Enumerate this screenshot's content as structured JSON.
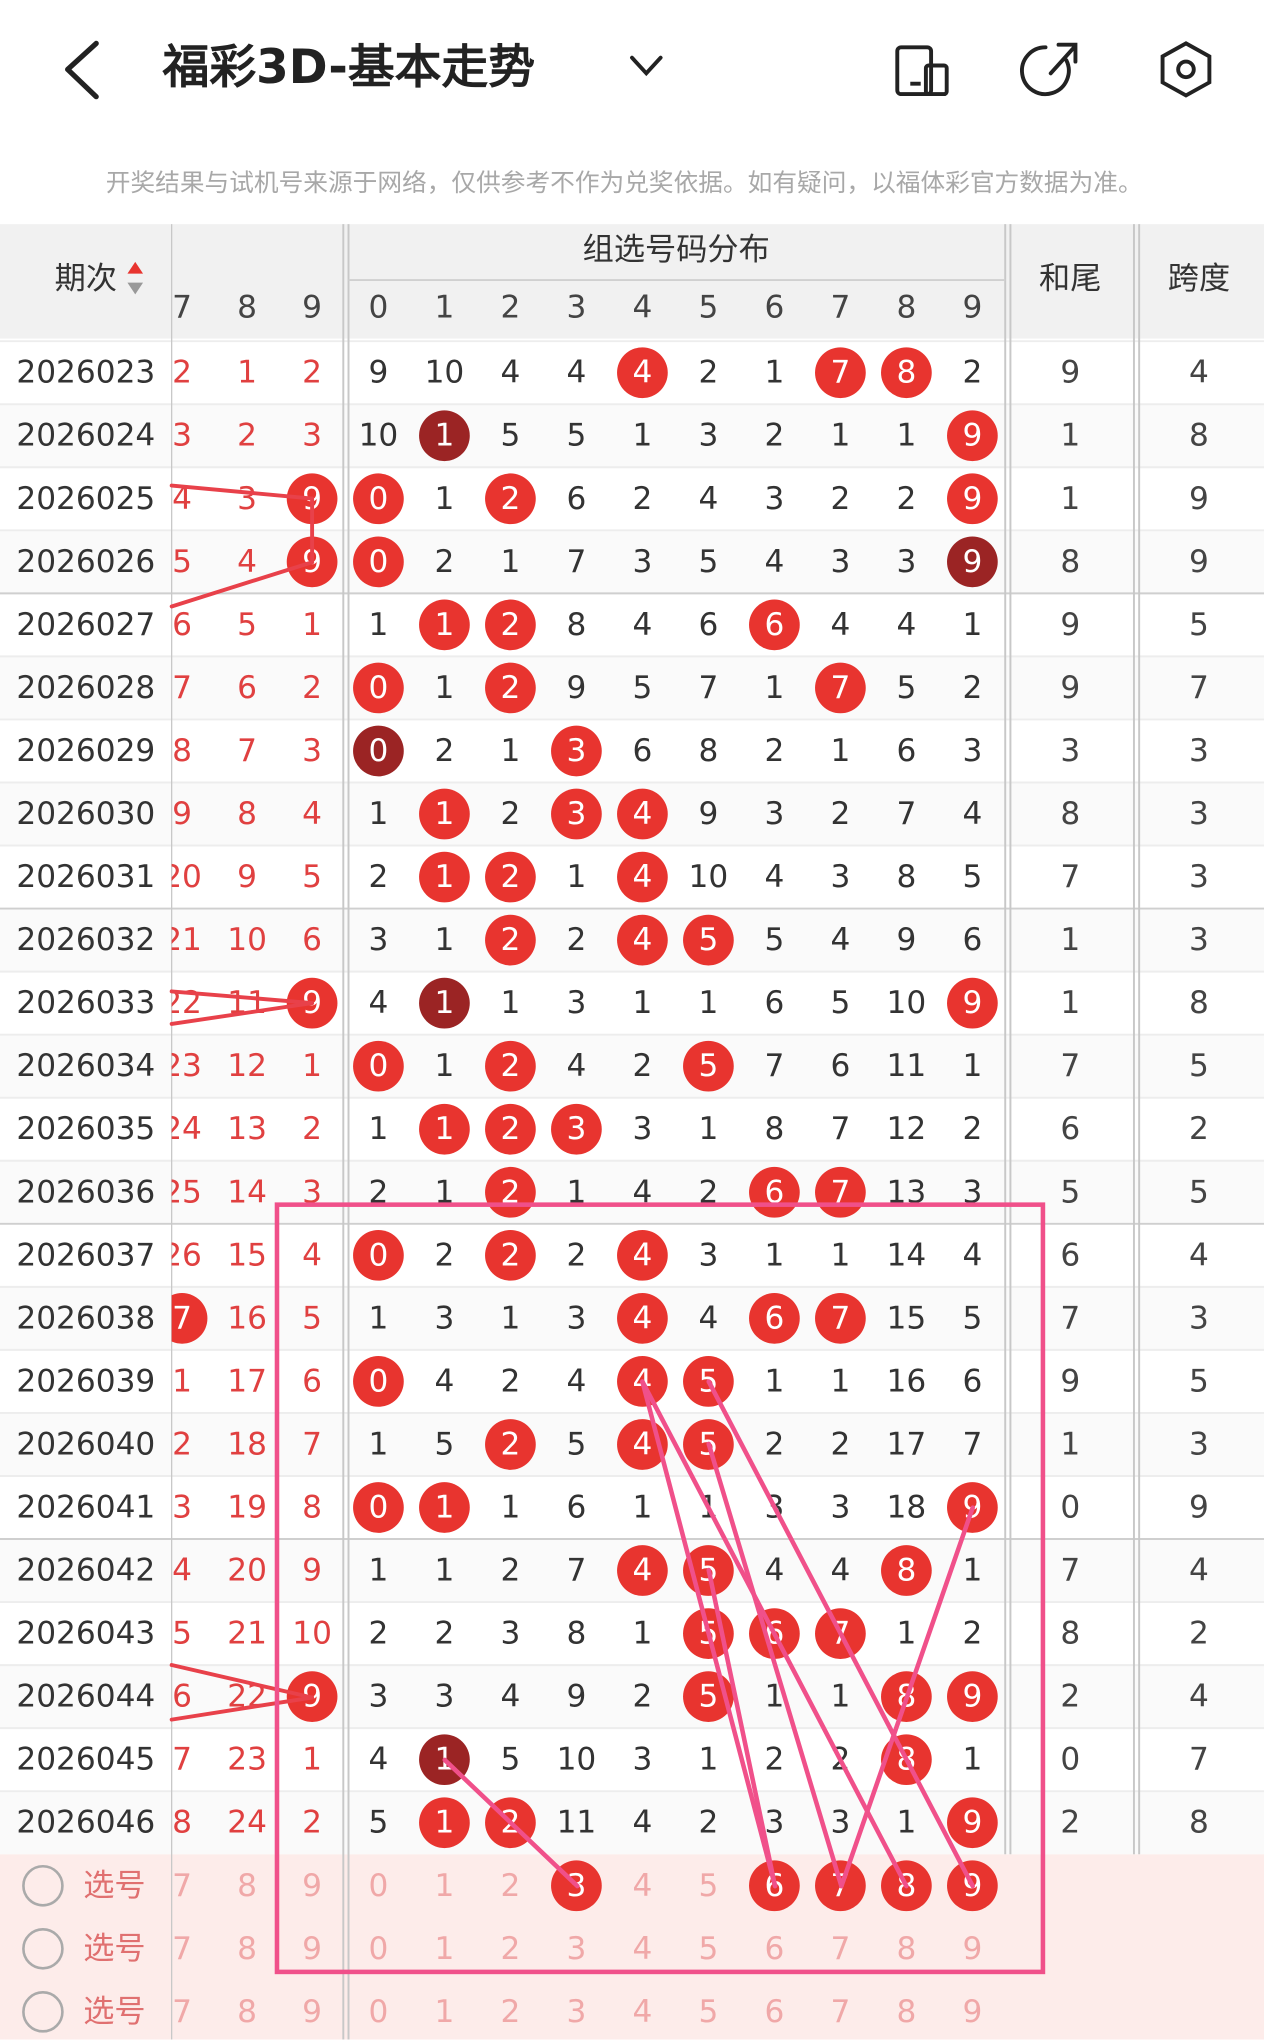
{
  "header": {
    "title": "福彩3D-基本走势",
    "notice": "开奖结果与试机号来源于网络，仅供参考不作为兑奖依据。如有疑问，以福体彩官方数据为准。"
  },
  "table": {
    "period_header": "期次",
    "group_header": "组选号码分布",
    "sum_tail_header": "和尾",
    "span_header": "跨度",
    "left_columns": [
      7,
      8,
      9
    ],
    "digit_columns": [
      0,
      1,
      2,
      3,
      4,
      5,
      6,
      7,
      8,
      9
    ],
    "rows": [
      {
        "period": "2026023",
        "left": [
          2,
          1,
          2
        ],
        "dist": [
          9,
          10,
          4,
          4,
          4,
          2,
          1,
          7,
          8,
          2
        ],
        "hit": [
          4,
          7,
          8
        ],
        "sum_tail": 9,
        "span": 4
      },
      {
        "period": "2026024",
        "left": [
          3,
          2,
          3
        ],
        "dist": [
          10,
          1,
          5,
          5,
          1,
          3,
          2,
          1,
          1,
          9
        ],
        "hit": [
          9
        ],
        "dark": [
          1
        ],
        "sum_tail": 1,
        "span": 8
      },
      {
        "period": "2026025",
        "left": [
          4,
          3,
          9
        ],
        "left_hit": [
          2
        ],
        "dist": [
          0,
          1,
          2,
          6,
          2,
          4,
          3,
          2,
          2,
          9
        ],
        "hit": [
          0,
          2,
          9
        ],
        "sum_tail": 1,
        "span": 9
      },
      {
        "period": "2026026",
        "left": [
          5,
          4,
          9
        ],
        "left_hit": [
          2
        ],
        "dist": [
          0,
          2,
          1,
          7,
          3,
          5,
          4,
          3,
          3,
          9
        ],
        "hit": [
          0
        ],
        "dark": [
          9
        ],
        "sum_tail": 8,
        "span": 9
      },
      {
        "period": "2026027",
        "left": [
          6,
          5,
          1
        ],
        "dist": [
          1,
          1,
          2,
          8,
          4,
          6,
          6,
          4,
          4,
          1
        ],
        "hit": [
          1,
          2,
          6
        ],
        "sum_tail": 9,
        "span": 5
      },
      {
        "period": "2026028",
        "left": [
          7,
          6,
          2
        ],
        "dist": [
          0,
          1,
          2,
          9,
          5,
          7,
          1,
          7,
          5,
          2
        ],
        "hit": [
          0,
          2,
          7
        ],
        "sum_tail": 9,
        "span": 7
      },
      {
        "period": "2026029",
        "left": [
          8,
          7,
          3
        ],
        "dist": [
          0,
          2,
          1,
          3,
          6,
          8,
          2,
          1,
          6,
          3
        ],
        "hit": [
          3
        ],
        "dark": [
          0
        ],
        "sum_tail": 3,
        "span": 3
      },
      {
        "period": "2026030",
        "left": [
          9,
          8,
          4
        ],
        "dist": [
          1,
          1,
          2,
          3,
          4,
          9,
          3,
          2,
          7,
          4
        ],
        "hit": [
          1,
          3,
          4
        ],
        "sum_tail": 8,
        "span": 3
      },
      {
        "period": "2026031",
        "left": [
          20,
          9,
          5
        ],
        "dist": [
          2,
          1,
          2,
          1,
          4,
          10,
          4,
          3,
          8,
          5
        ],
        "hit": [
          1,
          2,
          4
        ],
        "sum_tail": 7,
        "span": 3
      },
      {
        "period": "2026032",
        "left": [
          21,
          10,
          6
        ],
        "dist": [
          3,
          1,
          2,
          2,
          4,
          5,
          5,
          4,
          9,
          6
        ],
        "hit": [
          2,
          4,
          5
        ],
        "sum_tail": 1,
        "span": 3
      },
      {
        "period": "2026033",
        "left": [
          22,
          11,
          9
        ],
        "left_hit": [
          2
        ],
        "dist": [
          4,
          1,
          1,
          3,
          1,
          1,
          6,
          5,
          10,
          9
        ],
        "hit": [
          9
        ],
        "dark": [
          1
        ],
        "sum_tail": 1,
        "span": 8
      },
      {
        "period": "2026034",
        "left": [
          23,
          12,
          1
        ],
        "dist": [
          0,
          1,
          2,
          4,
          2,
          5,
          7,
          6,
          11,
          1
        ],
        "hit": [
          0,
          2,
          5
        ],
        "sum_tail": 7,
        "span": 5
      },
      {
        "period": "2026035",
        "left": [
          24,
          13,
          2
        ],
        "dist": [
          1,
          1,
          2,
          3,
          3,
          1,
          8,
          7,
          12,
          2
        ],
        "hit": [
          1,
          2,
          3
        ],
        "sum_tail": 6,
        "span": 2
      },
      {
        "period": "2026036",
        "left": [
          25,
          14,
          3
        ],
        "dist": [
          2,
          1,
          2,
          1,
          4,
          2,
          6,
          7,
          13,
          3
        ],
        "hit": [
          2,
          6,
          7
        ],
        "sum_tail": 5,
        "span": 5
      },
      {
        "period": "2026037",
        "left": [
          26,
          15,
          4
        ],
        "dist": [
          0,
          2,
          2,
          2,
          4,
          3,
          1,
          1,
          14,
          4
        ],
        "hit": [
          0,
          2,
          4
        ],
        "sum_tail": 6,
        "span": 4
      },
      {
        "period": "2026038",
        "left": [
          7,
          16,
          5
        ],
        "left_hit": [
          0
        ],
        "dist": [
          1,
          3,
          1,
          3,
          4,
          4,
          6,
          7,
          15,
          5
        ],
        "hit": [
          4,
          6,
          7
        ],
        "sum_tail": 7,
        "span": 3
      },
      {
        "period": "2026039",
        "left": [
          1,
          17,
          6
        ],
        "dist": [
          0,
          4,
          2,
          4,
          4,
          5,
          1,
          1,
          16,
          6
        ],
        "hit": [
          0,
          4,
          5
        ],
        "sum_tail": 9,
        "span": 5
      },
      {
        "period": "2026040",
        "left": [
          2,
          18,
          7
        ],
        "dist": [
          1,
          5,
          2,
          5,
          4,
          5,
          2,
          2,
          17,
          7
        ],
        "hit": [
          2,
          4,
          5
        ],
        "sum_tail": 1,
        "span": 3
      },
      {
        "period": "2026041",
        "left": [
          3,
          19,
          8
        ],
        "dist": [
          0,
          1,
          1,
          6,
          1,
          1,
          3,
          3,
          18,
          9
        ],
        "hit": [
          0,
          1,
          9
        ],
        "sum_tail": 0,
        "span": 9
      },
      {
        "period": "2026042",
        "left": [
          4,
          20,
          9
        ],
        "dist": [
          1,
          1,
          2,
          7,
          4,
          5,
          4,
          4,
          8,
          1
        ],
        "hit": [
          4,
          5,
          8
        ],
        "sum_tail": 7,
        "span": 4
      },
      {
        "period": "2026043",
        "left": [
          5,
          21,
          10
        ],
        "dist": [
          2,
          2,
          3,
          8,
          1,
          5,
          6,
          7,
          1,
          2
        ],
        "hit": [
          5,
          6,
          7
        ],
        "sum_tail": 8,
        "span": 2
      },
      {
        "period": "2026044",
        "left": [
          6,
          22,
          9
        ],
        "left_hit": [
          2
        ],
        "dist": [
          3,
          3,
          4,
          9,
          2,
          5,
          1,
          1,
          8,
          9
        ],
        "hit": [
          5,
          8,
          9
        ],
        "sum_tail": 2,
        "span": 4
      },
      {
        "period": "2026045",
        "left": [
          7,
          23,
          1
        ],
        "dist": [
          4,
          1,
          5,
          10,
          3,
          1,
          2,
          2,
          8,
          1
        ],
        "hit": [
          8
        ],
        "dark": [
          1
        ],
        "sum_tail": 0,
        "span": 7
      },
      {
        "period": "2026046",
        "left": [
          8,
          24,
          2
        ],
        "dist": [
          5,
          1,
          2,
          11,
          4,
          2,
          3,
          3,
          1,
          9
        ],
        "hit": [
          1,
          2,
          9
        ],
        "sum_tail": 2,
        "span": 8
      }
    ],
    "pick_rows": [
      {
        "label": "选号",
        "left": [
          7,
          8,
          9
        ],
        "dist": [
          0,
          1,
          2,
          3,
          4,
          5,
          6,
          7,
          8,
          9
        ],
        "hit": [
          3,
          6,
          7,
          8,
          9
        ]
      },
      {
        "label": "选号",
        "left": [
          7,
          8,
          9
        ],
        "dist": [
          0,
          1,
          2,
          3,
          4,
          5,
          6,
          7,
          8,
          9
        ]
      },
      {
        "label": "选号",
        "left": [
          7,
          8,
          9
        ],
        "dist": [
          0,
          1,
          2,
          3,
          4,
          5,
          6,
          7,
          8,
          9
        ]
      }
    ]
  }
}
